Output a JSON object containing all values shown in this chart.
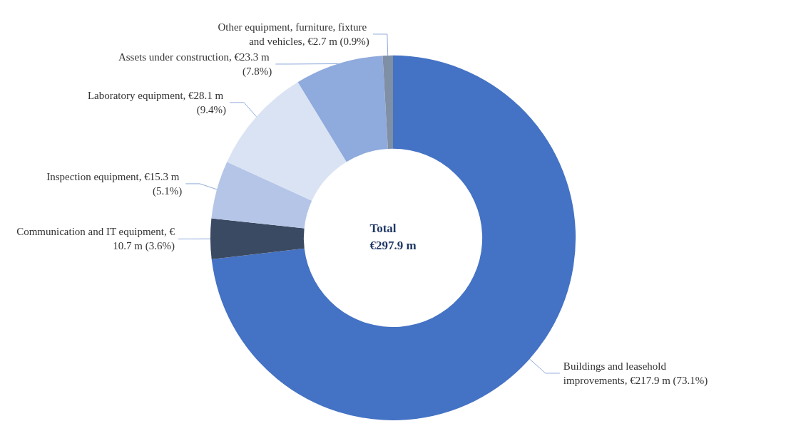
{
  "chart_data": {
    "type": "donut",
    "categories": [
      "Buildings and leasehold improvements",
      "Communication and IT equipment",
      "Inspection equipment",
      "Laboratory equipment",
      "Assets under construction",
      "Other equipment, furniture, fixture and vehicles"
    ],
    "values": [
      217.9,
      10.7,
      15.3,
      28.1,
      23.3,
      2.7
    ],
    "value_labels": [
      "€217.9 m (73.1%)",
      "€10.7 m (3.6%)",
      "€15.3 m (5.1%)",
      "€28.1 m (9.4%)",
      "€23.3 m (7.8%)",
      "€2.7 m (0.9%)"
    ],
    "colors": [
      "#4472c4",
      "#3b4a63",
      "#b4c5e7",
      "#dae3f3",
      "#8faadc",
      "#7f8fa6"
    ],
    "annotations": [
      "Total",
      "€297.9 m"
    ],
    "legend": false
  }
}
